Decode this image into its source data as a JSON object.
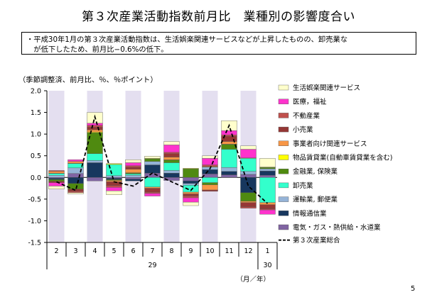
{
  "page": {
    "title": "第３次産業活動指数前月比　業種別の影響度合い",
    "note_lines": [
      "・平成30年1月の第３次産業活動指数は、生活娯楽関連サービスなどが上昇したものの、卸売業な",
      "　が低下したため、前月比−0.6%の低下。"
    ],
    "unit_note": "（季節調整済、前月比、％、％ポイント）",
    "page_number": "5"
  },
  "chart_data": {
    "type": "bar",
    "stacked": true,
    "categories": [
      "2",
      "3",
      "4",
      "5",
      "6",
      "7",
      "8",
      "9",
      "10",
      "11",
      "12",
      "1"
    ],
    "year_labels": [
      {
        "label": "29",
        "from": 0,
        "to": 10
      },
      {
        "label": "30",
        "from": 11,
        "to": 11
      }
    ],
    "axis_unit_label": "（月／年）",
    "ylim": [
      -1.5,
      2.0
    ],
    "yticks": [
      "2.0",
      "1.5",
      "1.0",
      "0.5",
      "0.0",
      "-0.5",
      "-1.0",
      "-1.5"
    ],
    "shaded_categories": [
      0,
      2,
      4,
      6,
      8,
      10
    ],
    "colors": {
      "shade": "#e4dff0"
    },
    "series": [
      {
        "name": "電気・ガス・熱供給・水道業",
        "color": "#8064a2",
        "values": [
          -0.02,
          0.09,
          -0.08,
          -0.02,
          -0.04,
          0.1,
          -0.07,
          -0.08,
          0.08,
          0.06,
          0.07,
          0.05
        ]
      },
      {
        "name": "情報通信業",
        "color": "#17375e",
        "values": [
          -0.03,
          -0.14,
          0.34,
          -0.03,
          -0.04,
          0.19,
          0.1,
          -0.06,
          0.1,
          0.08,
          -0.35,
          0.1
        ]
      },
      {
        "name": "運輸業, 郵便業",
        "color": "#95b3d7",
        "values": [
          0.05,
          0.13,
          0.05,
          0.04,
          0.05,
          0.08,
          0.06,
          -0.04,
          0.06,
          0.09,
          0.07,
          0.05
        ]
      },
      {
        "name": "卸売業",
        "color": "#33ffcc",
        "values": [
          0.04,
          0.1,
          0.16,
          0.26,
          0.03,
          -0.22,
          0.18,
          -0.16,
          -0.12,
          0.42,
          0.3,
          -0.58
        ]
      },
      {
        "name": "金融業, 保険業",
        "color": "#4f8a10",
        "values": [
          -0.04,
          -0.13,
          0.48,
          -0.02,
          0.02,
          0.06,
          0.06,
          0.2,
          -0.05,
          0.11,
          -0.2,
          0.03
        ]
      },
      {
        "name": "物品賃貸業(自動車賃貸業を含む)",
        "color": "#ffff00",
        "values": [
          0.01,
          0.01,
          0.02,
          0.02,
          0.01,
          0.01,
          0.01,
          0.01,
          0.01,
          0.01,
          0.01,
          0.01
        ]
      },
      {
        "name": "事業者向け関連サービス",
        "color": "#f79646",
        "values": [
          0.04,
          0.04,
          0.05,
          -0.03,
          0.08,
          -0.03,
          0.06,
          -0.04,
          -0.12,
          0.06,
          -0.03,
          -0.05
        ]
      },
      {
        "name": "小売業",
        "color": "#953735",
        "values": [
          -0.03,
          -0.05,
          0.06,
          -0.09,
          0.05,
          -0.09,
          0.08,
          -0.05,
          -0.03,
          0.12,
          -0.1,
          -0.1
        ]
      },
      {
        "name": "不動産業",
        "color": "#c0504d",
        "values": [
          0.02,
          -0.03,
          0.04,
          -0.04,
          0.03,
          -0.03,
          0.03,
          -0.04,
          0.04,
          0.03,
          -0.03,
          -0.02
        ]
      },
      {
        "name": "医療，福祉",
        "color": "#ff33cc",
        "values": [
          -0.08,
          0.04,
          0.05,
          -0.08,
          0.07,
          -0.06,
          0.17,
          -0.1,
          0.15,
          0.1,
          0.2,
          -0.1
        ]
      },
      {
        "name": "生活娯楽関連サービス",
        "color": "#ffffcc",
        "values": [
          -0.07,
          -0.03,
          0.25,
          -0.09,
          0.07,
          0.05,
          0.08,
          -0.08,
          0.06,
          0.23,
          0.08,
          0.2
        ]
      }
    ],
    "line": {
      "name": "第３次産業総合",
      "values": [
        -0.1,
        -0.3,
        1.4,
        -0.1,
        -0.2,
        0.1,
        -0.1,
        -0.3,
        0.2,
        1.2,
        -0.2,
        -0.6
      ]
    }
  }
}
